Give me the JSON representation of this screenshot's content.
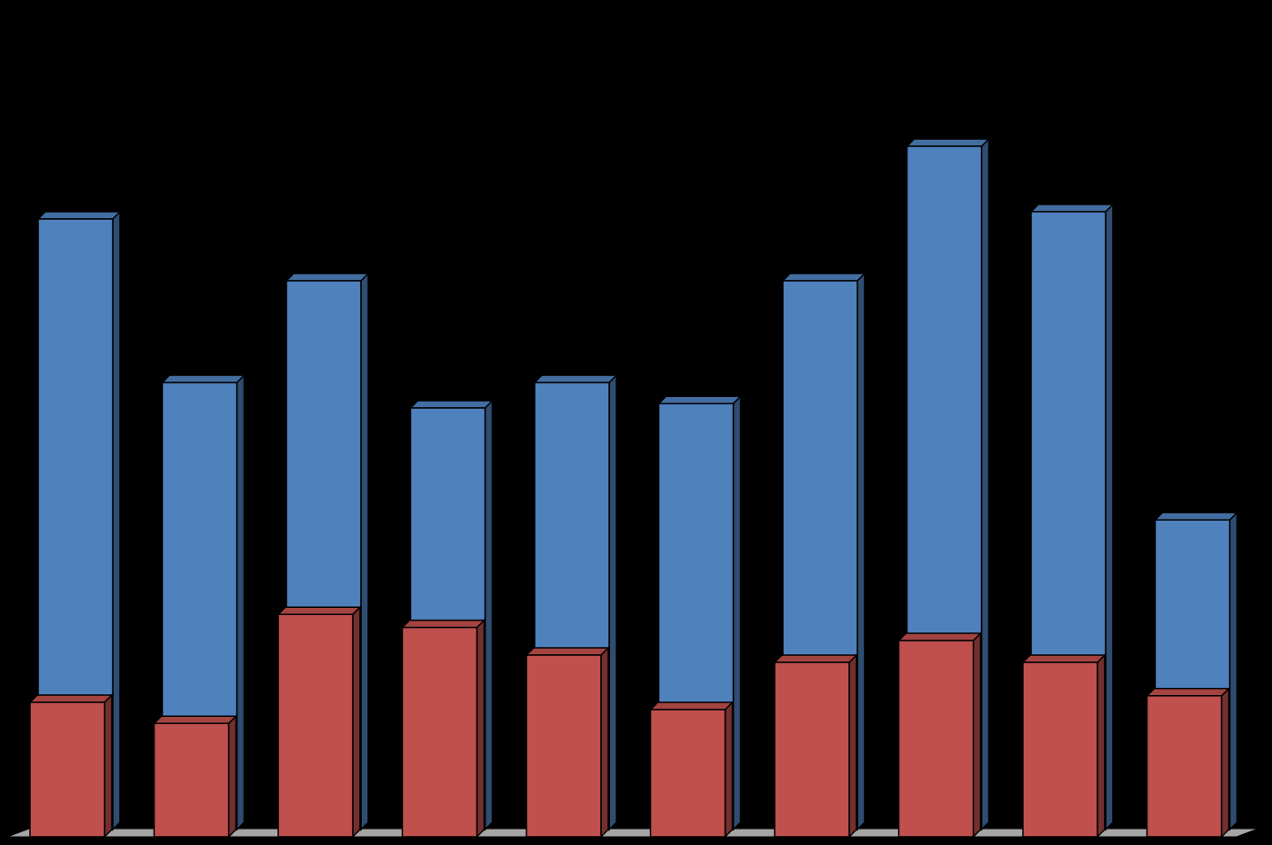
{
  "chart_data": {
    "type": "bar3d",
    "categories": [
      null,
      null,
      null,
      null,
      null,
      null,
      null,
      null,
      null,
      null
    ],
    "series": [
      {
        "color": "#c0504d",
        "values": [
          18.5,
          15.6,
          30.6,
          28.8,
          25,
          17.5,
          24,
          27,
          24,
          19.4
        ]
      },
      {
        "color": "#4f81bd",
        "values": [
          84,
          61.5,
          75.5,
          58,
          61.5,
          58.6,
          75.5,
          94,
          85,
          42.6
        ]
      }
    ],
    "ylim": [
      0,
      100
    ]
  }
}
